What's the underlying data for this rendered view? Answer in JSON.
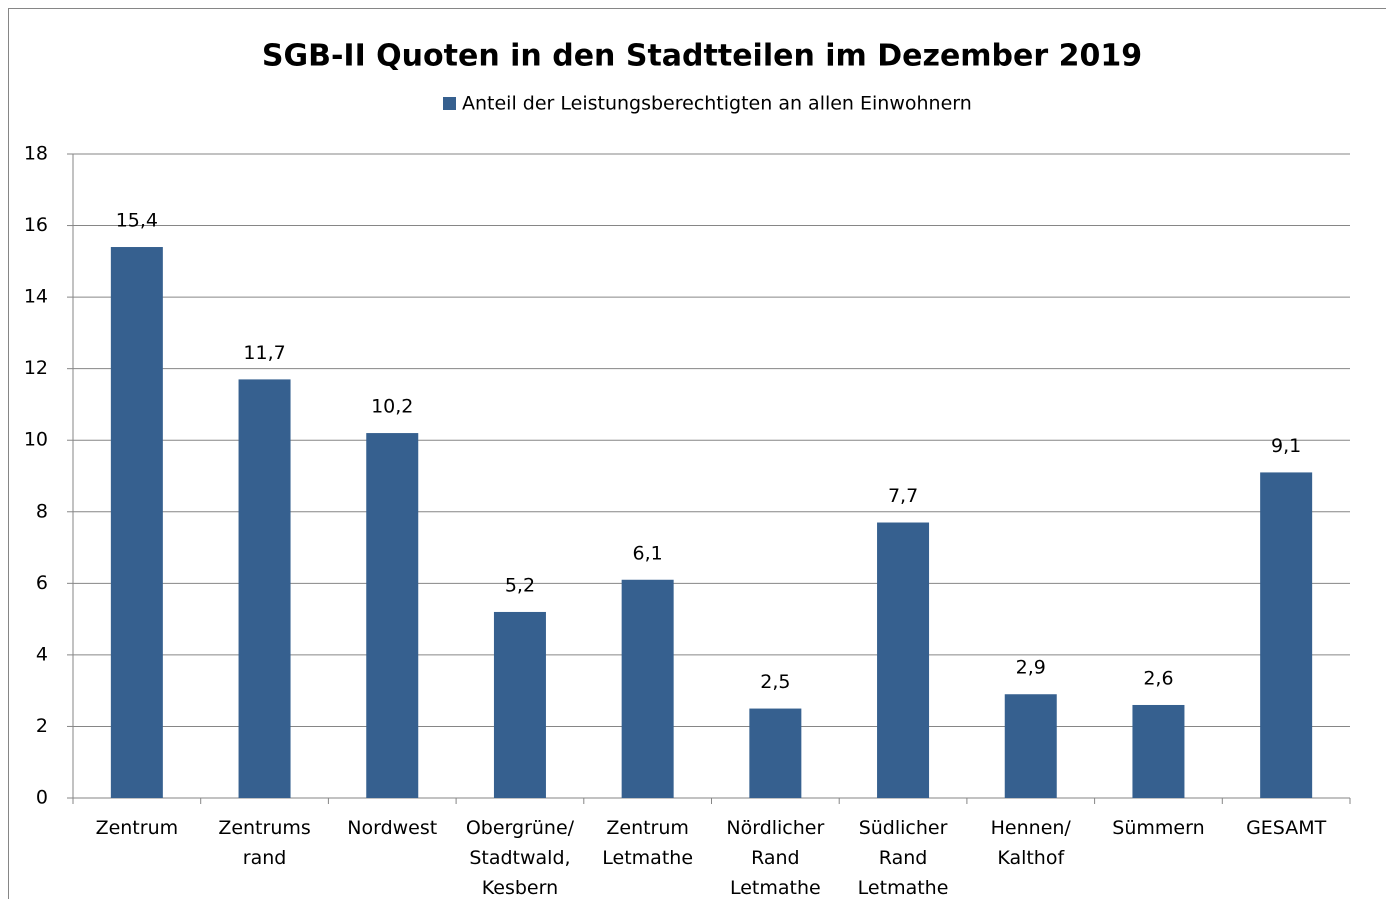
{
  "chart_data": {
    "type": "bar",
    "title": "SGB-II Quoten in den Stadtteilen im Dezember 2019",
    "categories": [
      "Zentrum",
      "Zentrums\nrand",
      "Nordwest",
      "Obergrüne/\nStadtwald,\nKesbern",
      "Zentrum\nLetmathe",
      "Nördlicher\nRand\nLetmathe",
      "Südlicher\nRand\nLetmathe",
      "Hennen/\nKalthof",
      "Sümmern",
      "GESAMT"
    ],
    "series": [
      {
        "name": "Anteil der Leistungsberechtigten an allen Einwohnern",
        "color": "#36608f",
        "values": [
          15.4,
          11.7,
          10.2,
          5.2,
          6.1,
          2.5,
          7.7,
          2.9,
          2.6,
          9.1
        ],
        "value_labels": [
          "15,4",
          "11,7",
          "10,2",
          "5,2",
          "6,1",
          "2,5",
          "7,7",
          "2,9",
          "2,6",
          "9,1"
        ]
      }
    ],
    "ylim": [
      0,
      18
    ],
    "yticks": [
      0,
      2,
      4,
      6,
      8,
      10,
      12,
      14,
      16,
      18
    ],
    "grid": true,
    "legend": "top"
  }
}
